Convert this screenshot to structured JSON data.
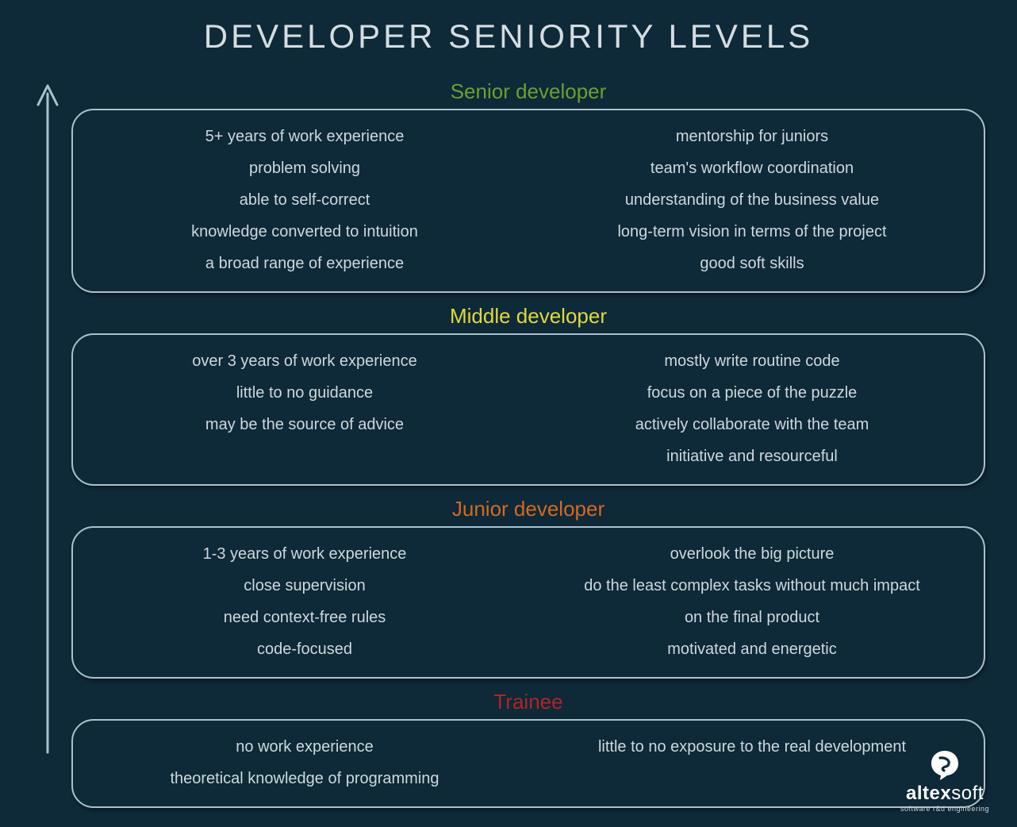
{
  "title": "DEVELOPER SENIORITY LEVELS",
  "background_color": "#0e2938",
  "text_color": "#cdd9de",
  "box_border_color": "#a9c2cc",
  "box_border_radius": 28,
  "arrow": {
    "stroke_color": "#a9c2cc",
    "stroke_width": 3
  },
  "levels": [
    {
      "title": "Senior developer",
      "title_color": "#6aa031",
      "left": [
        "5+ years of work experience",
        "problem solving",
        "able to self-correct",
        "knowledge converted to intuition",
        "a broad range of experience"
      ],
      "right": [
        "mentorship for juniors",
        "team's workflow coordination",
        "understanding of the business value",
        "long-term vision in terms of the project",
        "good soft skills"
      ]
    },
    {
      "title": "Middle developer",
      "title_color": "#e0d93c",
      "left": [
        "over 3 years of work experience",
        "little to no guidance",
        "may be the source of advice"
      ],
      "right": [
        "mostly write routine code",
        "focus on a piece of the puzzle",
        "actively collaborate with the team",
        "initiative and resourceful"
      ]
    },
    {
      "title": "Junior developer",
      "title_color": "#d6691f",
      "left": [
        "1-3 years of work experience",
        "close supervision",
        "need context-free rules",
        "code-focused"
      ],
      "right": [
        "overlook the big picture",
        "do the least complex tasks  without much impact",
        "on the final product",
        "motivated and energetic"
      ]
    },
    {
      "title": "Trainee",
      "title_color": "#b02525",
      "left": [
        "no work experience",
        "theoretical knowledge of programming"
      ],
      "right": [
        "little to no exposure  to the real development"
      ]
    }
  ],
  "logo": {
    "brand_bold": "altex",
    "brand_light": "soft",
    "tagline": "software r&d engineering",
    "icon_fill": "#ffffff",
    "icon_inner": "#0e2938"
  }
}
